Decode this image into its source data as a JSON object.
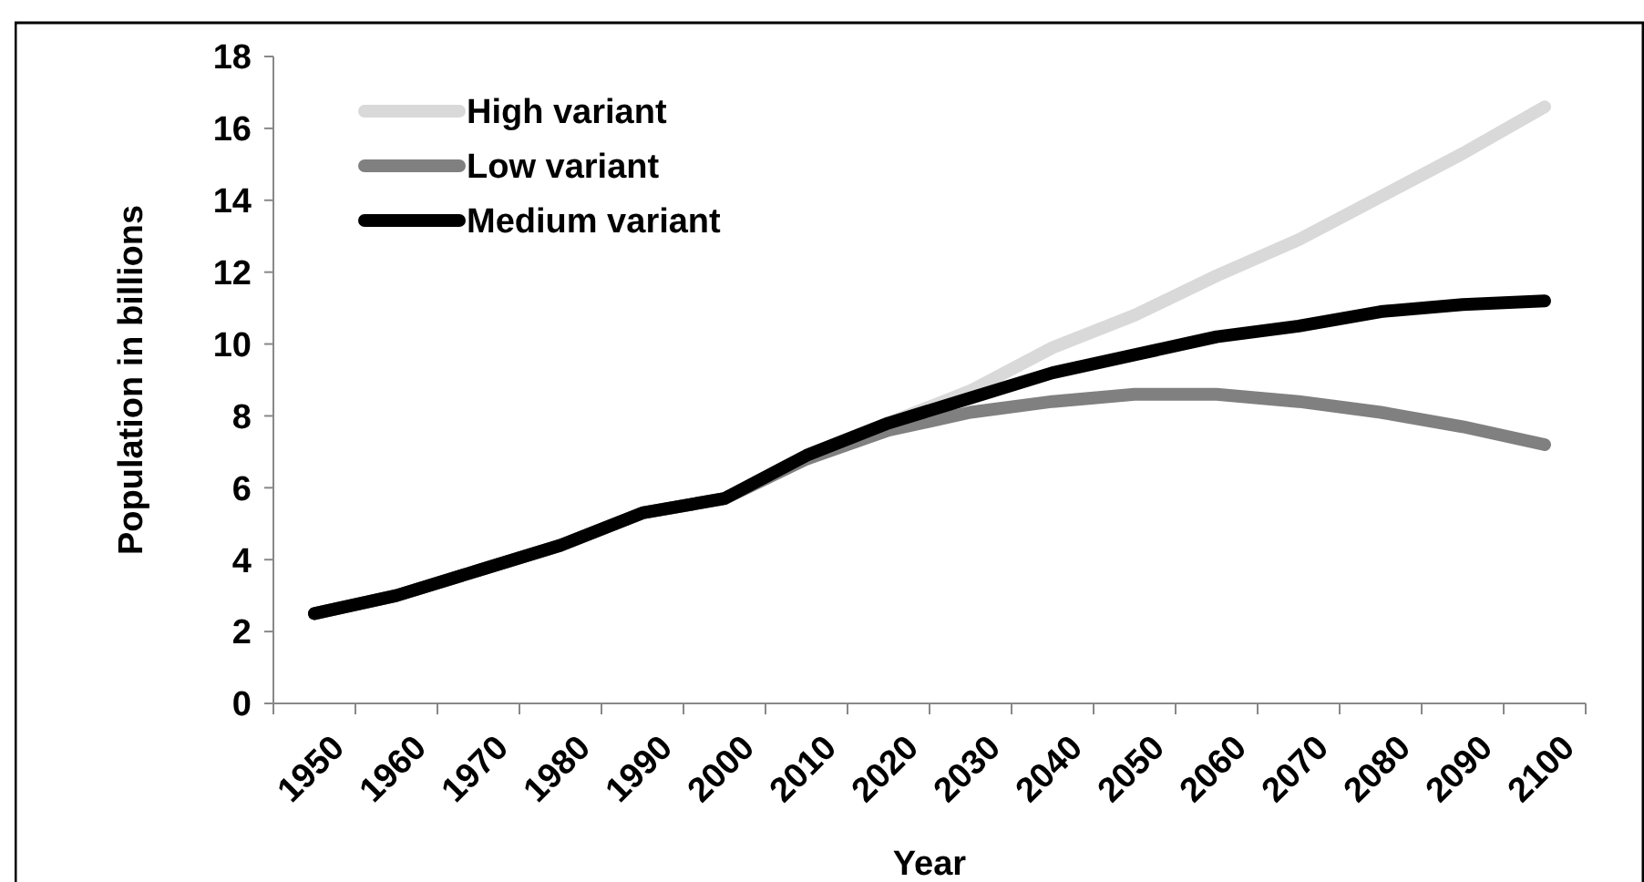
{
  "chart_data": {
    "type": "line",
    "xlabel": "Year",
    "ylabel": "Population in billions",
    "categories": [
      "1950",
      "1960",
      "1970",
      "1980",
      "1990",
      "2000",
      "2010",
      "2020",
      "2030",
      "2040",
      "2050",
      "2060",
      "2070",
      "2080",
      "2090",
      "2100"
    ],
    "ylim": [
      0,
      18
    ],
    "yticks": [
      0,
      2,
      4,
      6,
      8,
      10,
      12,
      14,
      16,
      18
    ],
    "grid": false,
    "legend": "top left",
    "marker": "none",
    "line_style": "solid",
    "series": [
      {
        "name": "High variant",
        "color": "#d9d9d9",
        "values": [
          2.5,
          3.0,
          3.7,
          4.4,
          5.3,
          5.7,
          6.9,
          7.8,
          8.7,
          9.9,
          10.8,
          11.9,
          12.9,
          14.1,
          15.3,
          16.6
        ]
      },
      {
        "name": "Low variant",
        "color": "#808080",
        "values": [
          2.5,
          3.0,
          3.7,
          4.4,
          5.3,
          5.7,
          6.8,
          7.6,
          8.1,
          8.4,
          8.6,
          8.6,
          8.4,
          8.1,
          7.7,
          7.2
        ]
      },
      {
        "name": "Medium variant",
        "color": "#000000",
        "values": [
          2.5,
          3.0,
          3.7,
          4.4,
          5.3,
          5.7,
          6.9,
          7.8,
          8.5,
          9.2,
          9.7,
          10.2,
          10.5,
          10.9,
          11.1,
          11.2
        ]
      }
    ]
  }
}
